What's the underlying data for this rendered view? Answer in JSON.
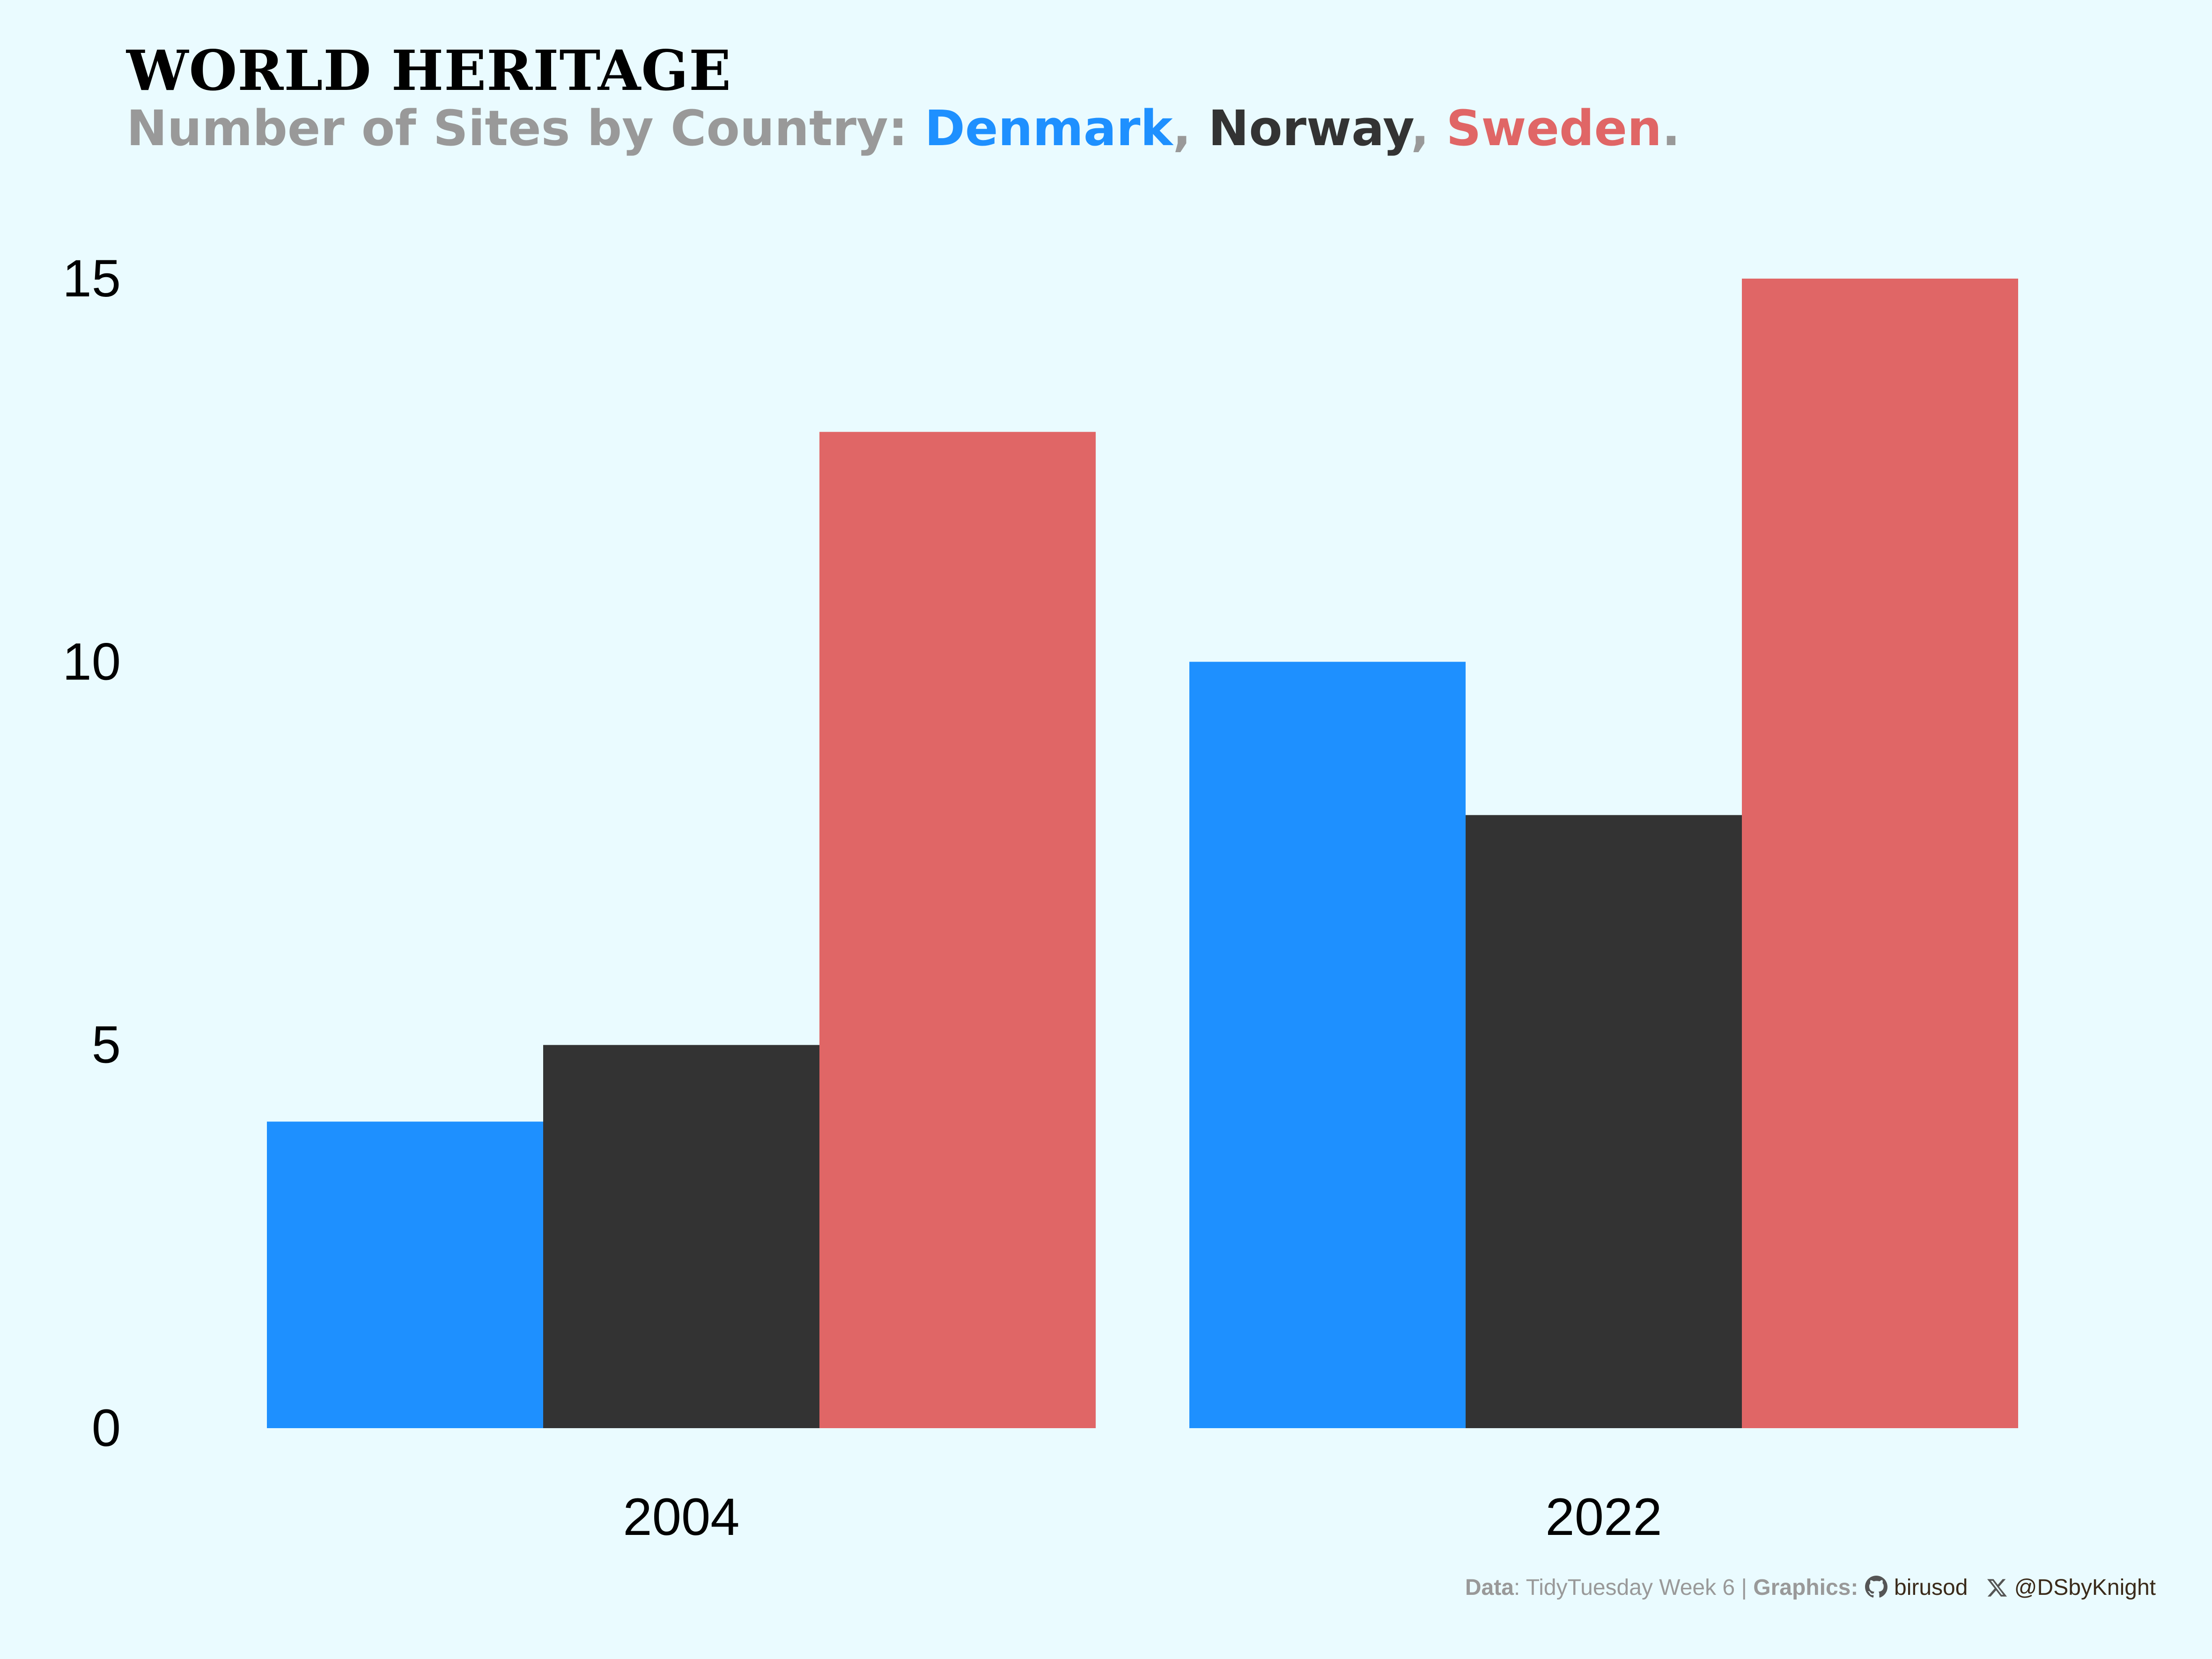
{
  "header": {
    "title": "WORLD HERITAGE",
    "subtitle_prefix": "Number of Sites by Country: ",
    "subtitle_sep1": ", ",
    "subtitle_sep2": ", ",
    "subtitle_end": "."
  },
  "caption": {
    "data_label": "Data",
    "data_value": ": TidyTuesday Week 6 | ",
    "graphics_label": "Graphics: ",
    "github_icon": "github-icon",
    "github_handle": "birusod",
    "x_icon": "x-twitter-icon",
    "x_handle": "@DSbyKnight"
  },
  "colors": {
    "background": "#EAFBFF",
    "Denmark": "#1E90FF",
    "Norway": "#333333",
    "Sweden": "#E06666",
    "subtitle_gray": "#999999"
  },
  "chart_data": {
    "type": "bar",
    "categories": [
      "2004",
      "2022"
    ],
    "series": [
      {
        "name": "Denmark",
        "values": [
          4,
          10
        ]
      },
      {
        "name": "Norway",
        "values": [
          5,
          8
        ]
      },
      {
        "name": "Sweden",
        "values": [
          13,
          15
        ]
      }
    ],
    "ylim": [
      0,
      15
    ],
    "yticks": [
      "0",
      "5",
      "10",
      "15"
    ],
    "grid": false,
    "legend": "in subtitle"
  }
}
